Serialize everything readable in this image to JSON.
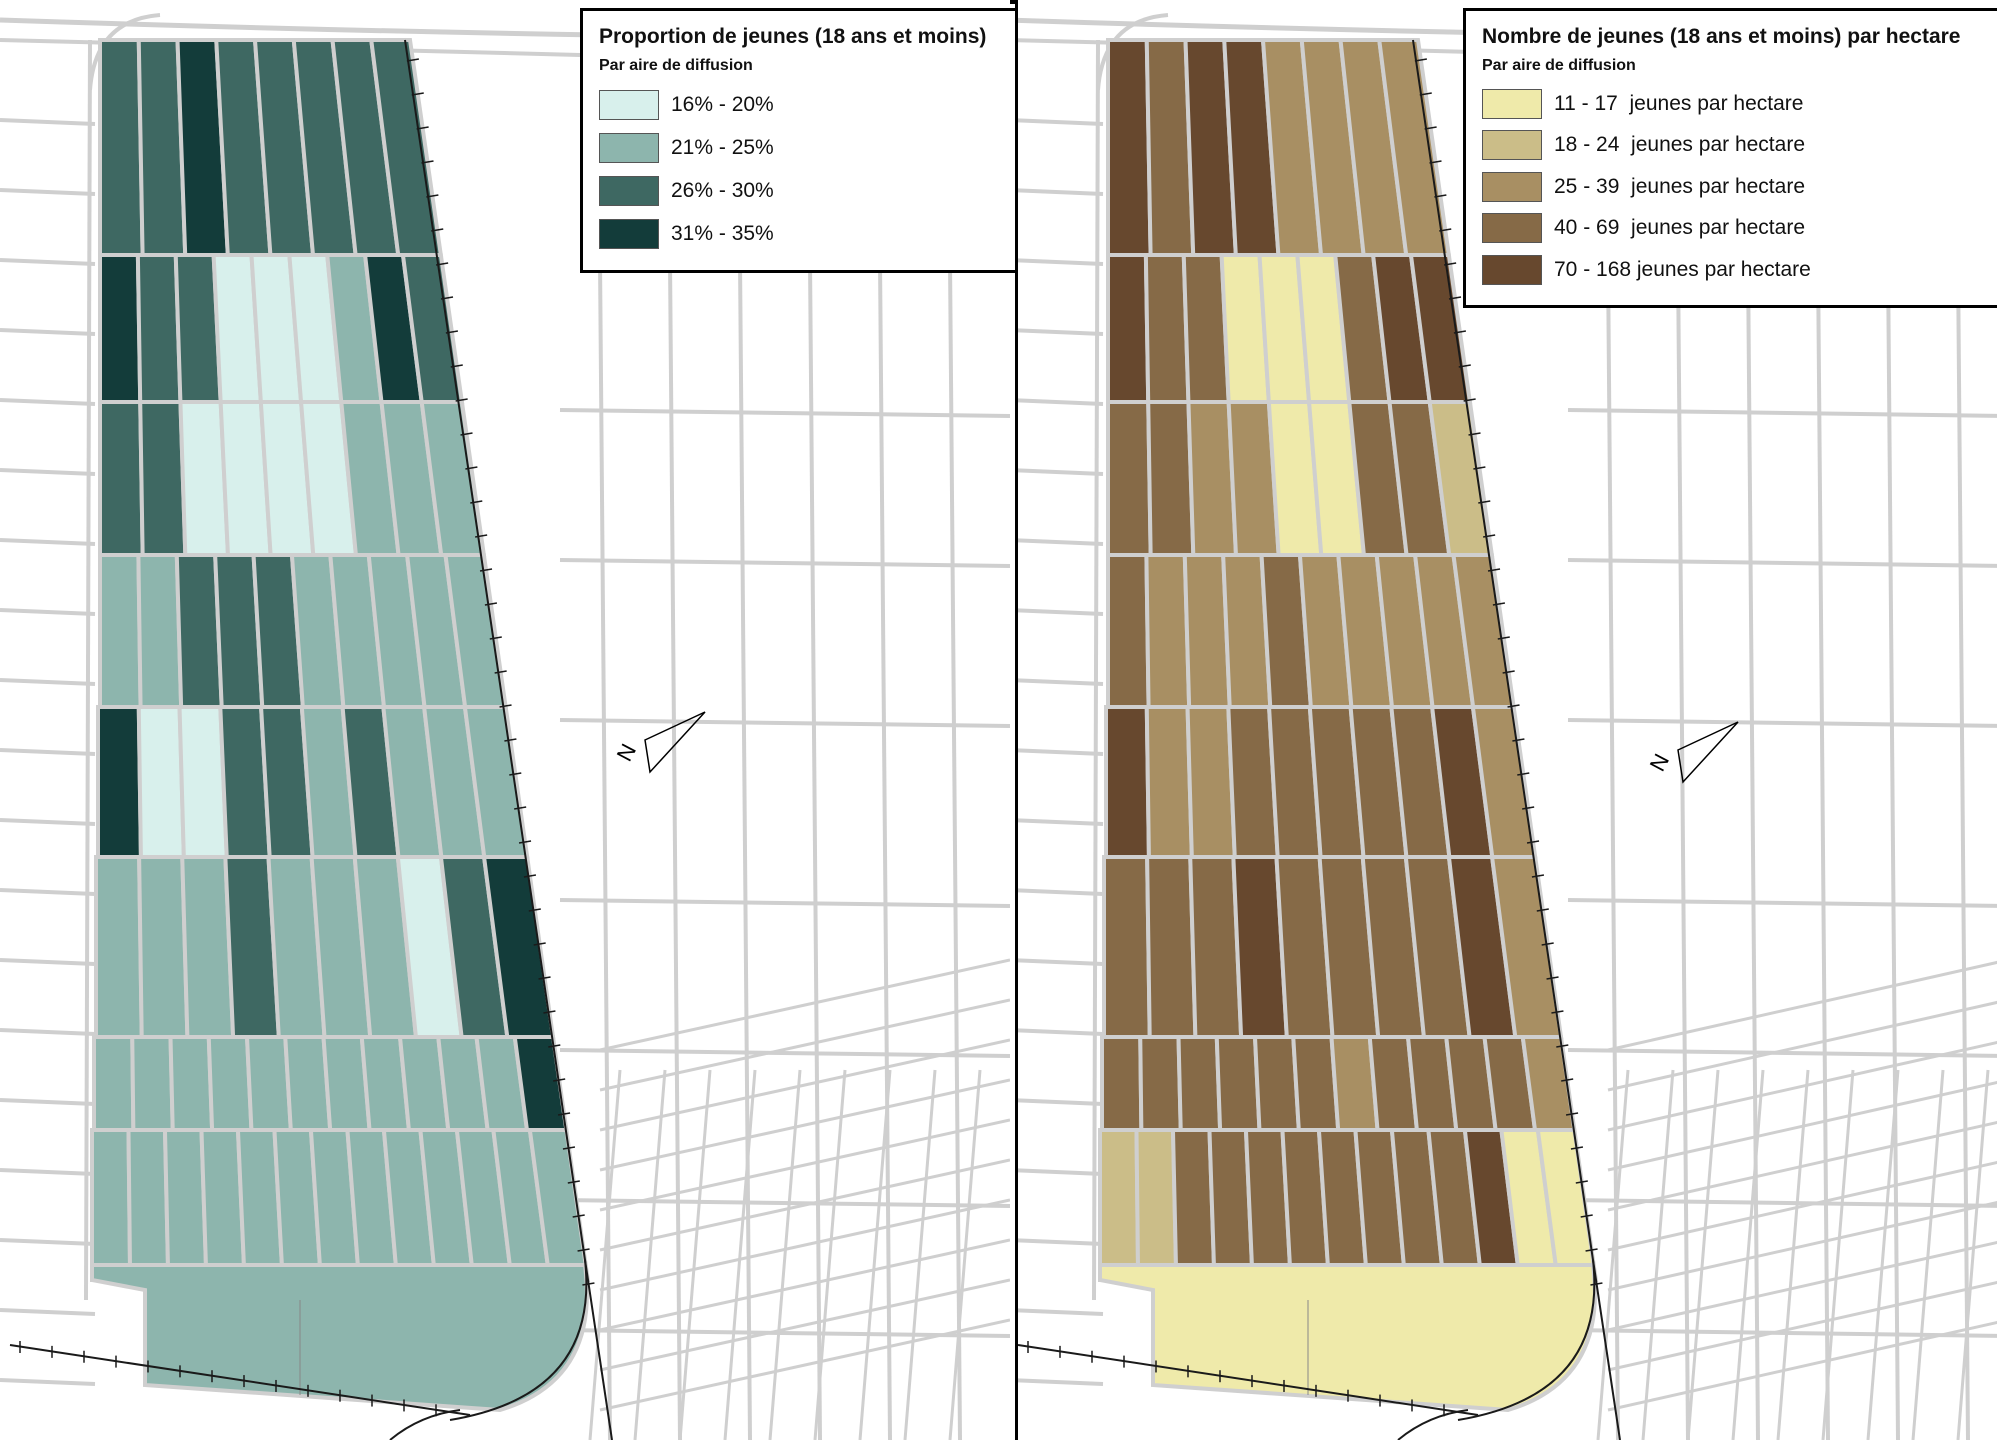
{
  "left_map": {
    "legend": {
      "title": "Proportion de jeunes (18 ans et moins)",
      "subtitle": "Par aire de diffusion",
      "classes": [
        {
          "label": "16% - 20%",
          "color": "#d8f0ec"
        },
        {
          "label": "21% - 25%",
          "color": "#8db5ad"
        },
        {
          "label": "26% - 30%",
          "color": "#3e6862"
        },
        {
          "label": "31% - 35%",
          "color": "#133c3a"
        }
      ]
    }
  },
  "right_map": {
    "legend": {
      "title": "Nombre de jeunes (18 ans et moins) par hectare",
      "subtitle": "Par aire de diffusion",
      "classes": [
        {
          "label": "11 - 17  jeunes par hectare",
          "color": "#efeaaa"
        },
        {
          "label": "18 - 24  jeunes par hectare",
          "color": "#cbbd88"
        },
        {
          "label": "25 - 39  jeunes par hectare",
          "color": "#a88f63"
        },
        {
          "label": "40 - 69  jeunes par hectare",
          "color": "#866a47"
        },
        {
          "label": "70 - 168 jeunes par hectare",
          "color": "#67482e"
        }
      ]
    }
  },
  "north_arrow": {
    "label": "N"
  },
  "colors": {
    "street": "#cfcfcf",
    "railway": "#1a1a1a",
    "frame": "#000000"
  }
}
